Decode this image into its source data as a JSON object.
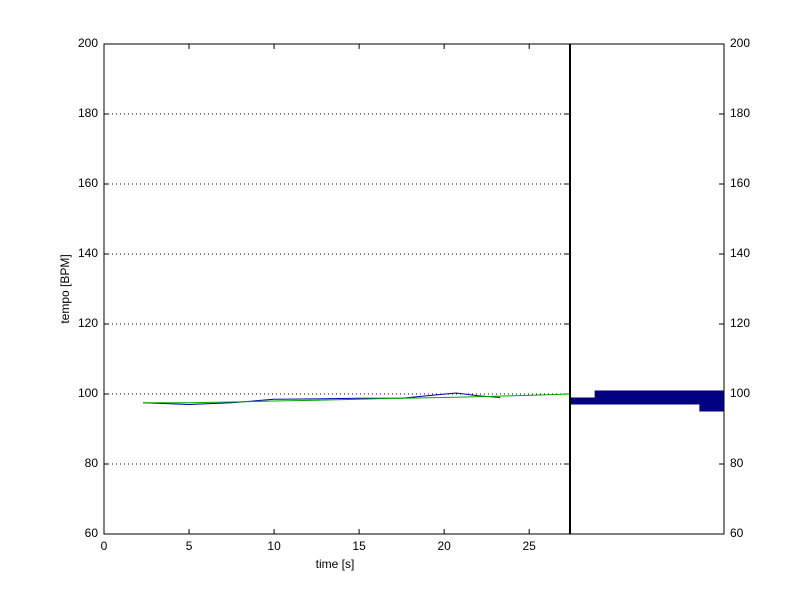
{
  "chart_data": {
    "type": "line",
    "x_label": "time [s]",
    "y_label": "tempo [BPM]",
    "xlim": [
      0,
      27.4
    ],
    "xticks": [
      0,
      5,
      10,
      15,
      20,
      25
    ],
    "ylim": [
      60,
      200
    ],
    "yticks": [
      60,
      80,
      100,
      120,
      140,
      160,
      180,
      200
    ],
    "grid": true,
    "series": [
      {
        "color": "#0000aa",
        "x": [
          2.3,
          5,
          7.5,
          10,
          12.5,
          15,
          17.5,
          19,
          20.7,
          22,
          23.3
        ],
        "values": [
          97.5,
          97,
          97.5,
          98.5,
          98.6,
          98.8,
          98.8,
          99.5,
          100.3,
          99.5,
          99
        ]
      },
      {
        "color": "#00aa00",
        "x": [
          2.3,
          5,
          7.5,
          10,
          12.5,
          15,
          17.5,
          20,
          22.5,
          25,
          27.4
        ],
        "values": [
          97.5,
          97.5,
          97.7,
          98,
          98.2,
          98.5,
          98.8,
          99,
          99.3,
          99.6,
          100
        ]
      }
    ],
    "side_histogram": {
      "type": "barh",
      "color": "#000080",
      "xlim": [
        0,
        1
      ],
      "bins": [
        95,
        97,
        99,
        101
      ],
      "values": [
        0.16,
        1.0,
        0.84
      ]
    }
  }
}
